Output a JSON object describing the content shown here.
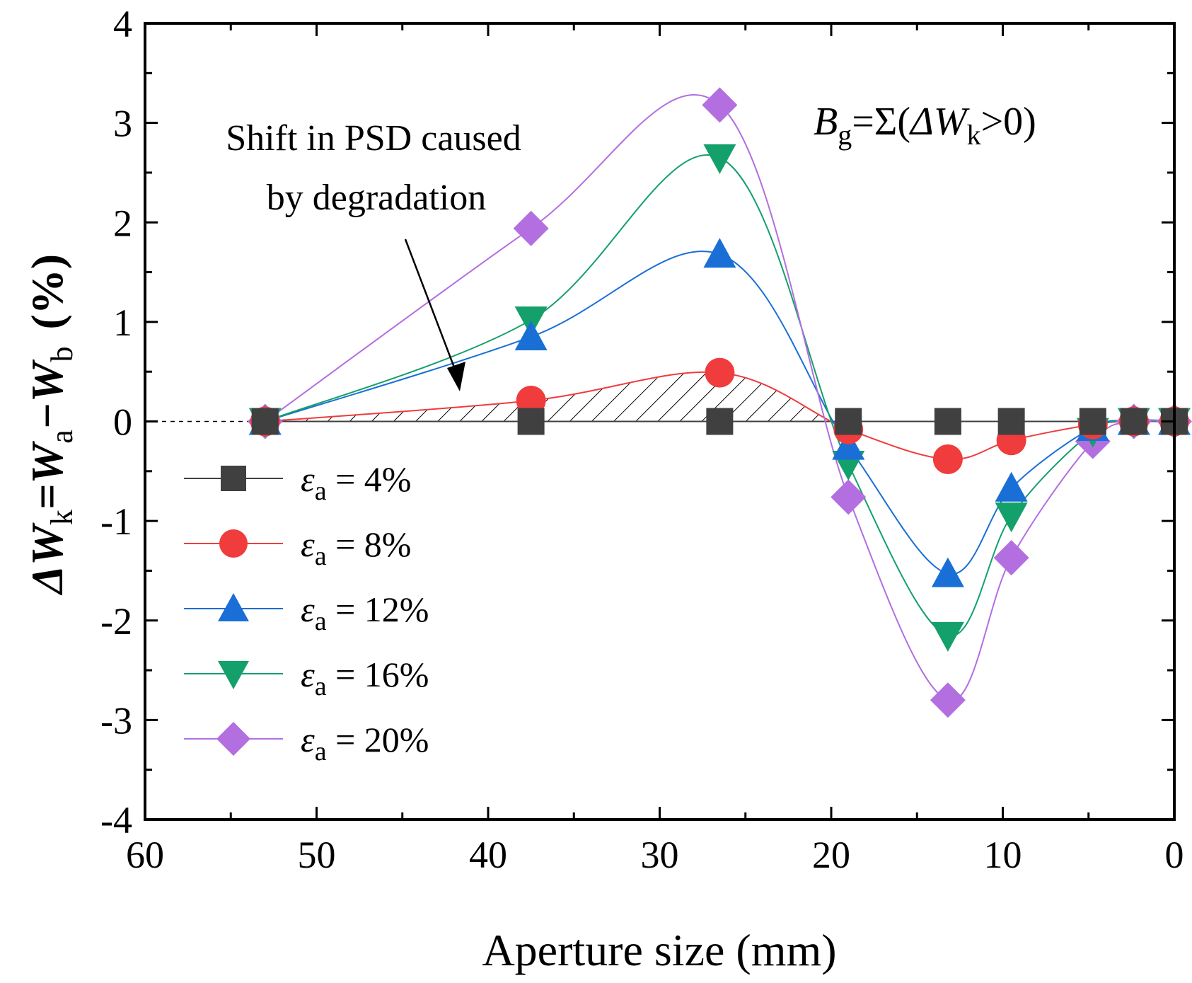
{
  "chart_data": {
    "type": "line",
    "title": "",
    "xlabel": "Aperture size (mm)",
    "ylabel": {
      "parts": [
        "ΔW",
        "k",
        "=W",
        "a",
        "−W",
        "b",
        "(%)"
      ]
    },
    "xlim": [
      60,
      0
    ],
    "ylim": [
      -4,
      4
    ],
    "x_ticks": [
      "60",
      "50",
      "40",
      "30",
      "20",
      "10",
      "0"
    ],
    "y_ticks": [
      "4",
      "3",
      "2",
      "1",
      "0",
      "-1",
      "-2",
      "-3",
      "-4"
    ],
    "x": [
      53,
      37.5,
      26.5,
      19,
      13.2,
      9.5,
      4.75,
      2.36,
      0
    ],
    "series": [
      {
        "name": "εa = 4%",
        "color": "#404040",
        "marker": "square",
        "values": [
          0,
          0,
          0,
          0,
          0,
          0,
          0,
          0,
          0
        ]
      },
      {
        "name": "εa = 8%",
        "color": "#f03c3c",
        "marker": "circle",
        "values": [
          0,
          0.21,
          0.49,
          -0.08,
          -0.38,
          -0.19,
          -0.03,
          0,
          0
        ]
      },
      {
        "name": "εa = 12%",
        "color": "#1a6fd6",
        "marker": "triangle-up",
        "values": [
          0,
          0.85,
          1.68,
          -0.25,
          -1.53,
          -0.67,
          -0.06,
          0,
          0
        ]
      },
      {
        "name": "εa = 16%",
        "color": "#14a06a",
        "marker": "triangle-down",
        "values": [
          0,
          1.02,
          2.65,
          -0.43,
          -2.15,
          -0.95,
          -0.1,
          0,
          0
        ]
      },
      {
        "name": "εa = 20%",
        "color": "#b36ee0",
        "marker": "diamond",
        "values": [
          0,
          1.94,
          3.18,
          -0.76,
          -2.8,
          -1.37,
          -0.2,
          0,
          0
        ]
      }
    ],
    "legend": {
      "placement": "lower-left",
      "entries": [
        {
          "symbol": "ε",
          "sub": "a",
          "text": " = 4%"
        },
        {
          "symbol": "ε",
          "sub": "a",
          "text": " = 8%"
        },
        {
          "symbol": "ε",
          "sub": "a",
          "text": " = 12%"
        },
        {
          "symbol": "ε",
          "sub": "a",
          "text": " = 16%"
        },
        {
          "symbol": "ε",
          "sub": "a",
          "text": " = 20%"
        }
      ]
    },
    "annotations": {
      "shift_line1": "Shift in PSD caused",
      "shift_line2": "by degradation",
      "formula": {
        "B": "B",
        "g": "g",
        "mid": "=Σ(",
        "dW": "ΔW",
        "k": "k",
        "end": ">0)"
      }
    },
    "hatched_region": "area between εa = 8% curve and zero line where ΔWk > 0",
    "reference_line": {
      "y": 0,
      "style": "dashed"
    }
  }
}
